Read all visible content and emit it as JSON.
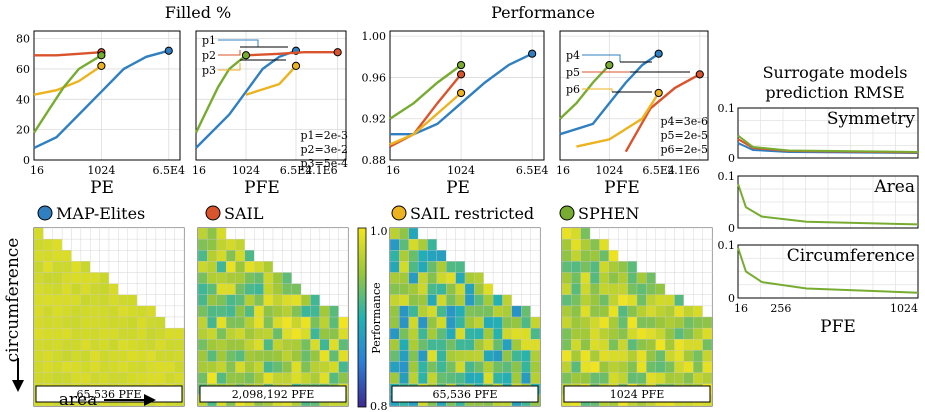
{
  "titles": {
    "filled": "Filled %",
    "performance": "Performance",
    "rmse_line1": "Surrogate models",
    "rmse_line2": "prediction RMSE"
  },
  "legend": [
    {
      "name": "MAP-Elites",
      "color": "#2f7fc1"
    },
    {
      "name": "SAIL",
      "color": "#d9542c"
    },
    {
      "name": "SAIL restricted",
      "color": "#edb31f"
    },
    {
      "name": "SPHEN",
      "color": "#77ac30"
    }
  ],
  "axes_labels": {
    "pe": "PE",
    "pfe": "PFE",
    "circumference": "circumference",
    "area": "area",
    "colorbar": "Performance"
  },
  "chart_data": [
    {
      "type": "line",
      "name": "filled-pe",
      "xscale": "log",
      "xticks": [
        "16",
        "1024",
        "6.5E4"
      ],
      "yticks": [
        "0",
        "20",
        "40",
        "60",
        "80"
      ],
      "ylim": [
        0,
        85
      ],
      "series": [
        {
          "name": "MAP-Elites",
          "color": "#2f7fc1",
          "points": [
            [
              16,
              8
            ],
            [
              64,
              15
            ],
            [
              256,
              30
            ],
            [
              1024,
              45
            ],
            [
              4096,
              60
            ],
            [
              16384,
              68
            ],
            [
              65536,
              72
            ]
          ],
          "end": [
            65536,
            72
          ]
        },
        {
          "name": "SAIL",
          "color": "#d9542c",
          "points": [
            [
              16,
              69
            ],
            [
              64,
              69
            ],
            [
              256,
              70
            ],
            [
              1024,
              71
            ]
          ],
          "end": [
            1024,
            71
          ]
        },
        {
          "name": "SAIL restricted",
          "color": "#edb31f",
          "points": [
            [
              16,
              43
            ],
            [
              64,
              46
            ],
            [
              256,
              52
            ],
            [
              1024,
              62
            ]
          ],
          "end": [
            1024,
            62
          ]
        },
        {
          "name": "SPHEN",
          "color": "#77ac30",
          "points": [
            [
              16,
              18
            ],
            [
              40,
              33
            ],
            [
              100,
              48
            ],
            [
              256,
              60
            ],
            [
              1024,
              69
            ]
          ],
          "end": [
            1024,
            69
          ]
        }
      ]
    },
    {
      "type": "line",
      "name": "filled-pfe",
      "xscale": "log",
      "xticks": [
        "16",
        "1024",
        "6.5E4",
        "2.1E6"
      ],
      "ylim": [
        0,
        85
      ],
      "annotations": [
        "p1",
        "p2",
        "p3",
        "p1=2e-3",
        "p2=3e-2",
        "p3=5e-4"
      ],
      "series": [
        {
          "name": "MAP-Elites",
          "color": "#2f7fc1",
          "points": [
            [
              16,
              8
            ],
            [
              256,
              30
            ],
            [
              1024,
              45
            ],
            [
              4096,
              60
            ],
            [
              16384,
              68
            ],
            [
              65536,
              72
            ]
          ],
          "end": [
            65536,
            72
          ]
        },
        {
          "name": "SAIL",
          "color": "#d9542c",
          "points": [
            [
              1024,
              69
            ],
            [
              16384,
              70
            ],
            [
              131072,
              71
            ],
            [
              2097152,
              71
            ]
          ],
          "end": [
            2097152,
            71
          ]
        },
        {
          "name": "SAIL restricted",
          "color": "#edb31f",
          "points": [
            [
              1024,
              43
            ],
            [
              16384,
              50
            ],
            [
              65536,
              62
            ]
          ],
          "end": [
            65536,
            62
          ]
        },
        {
          "name": "SPHEN",
          "color": "#77ac30",
          "points": [
            [
              16,
              18
            ],
            [
              40,
              33
            ],
            [
              100,
              48
            ],
            [
              256,
              60
            ],
            [
              1024,
              69
            ]
          ],
          "end": [
            1024,
            69
          ]
        }
      ]
    },
    {
      "type": "line",
      "name": "perf-pe",
      "xscale": "log",
      "xticks": [
        "16",
        "1024",
        "6.5E4"
      ],
      "yticks": [
        "0.88",
        "0.92",
        "0.96",
        "1.00"
      ],
      "ylim": [
        0.88,
        1.005
      ],
      "series": [
        {
          "name": "MAP-Elites",
          "color": "#2f7fc1",
          "points": [
            [
              16,
              0.905
            ],
            [
              64,
              0.905
            ],
            [
              256,
              0.915
            ],
            [
              1024,
              0.935
            ],
            [
              4096,
              0.955
            ],
            [
              16384,
              0.972
            ],
            [
              65536,
              0.983
            ]
          ],
          "end": [
            65536,
            0.983
          ]
        },
        {
          "name": "SAIL",
          "color": "#d9542c",
          "points": [
            [
              16,
              0.893
            ],
            [
              64,
              0.905
            ],
            [
              256,
              0.935
            ],
            [
              1024,
              0.963
            ]
          ],
          "end": [
            1024,
            0.963
          ]
        },
        {
          "name": "SAIL restricted",
          "color": "#edb31f",
          "points": [
            [
              16,
              0.895
            ],
            [
              64,
              0.905
            ],
            [
              256,
              0.925
            ],
            [
              1024,
              0.945
            ]
          ],
          "end": [
            1024,
            0.945
          ]
        },
        {
          "name": "SPHEN",
          "color": "#77ac30",
          "points": [
            [
              16,
              0.92
            ],
            [
              64,
              0.935
            ],
            [
              256,
              0.955
            ],
            [
              1024,
              0.972
            ]
          ],
          "end": [
            1024,
            0.972
          ]
        }
      ]
    },
    {
      "type": "line",
      "name": "perf-pfe",
      "xscale": "log",
      "xticks": [
        "16",
        "1024",
        "6.5E4",
        "2.1E6"
      ],
      "ylim": [
        0.88,
        1.005
      ],
      "annotations": [
        "p4",
        "p5",
        "p6",
        "p4=3e-6",
        "p5=2e-5",
        "p6=2e-5"
      ],
      "series": [
        {
          "name": "MAP-Elites",
          "color": "#2f7fc1",
          "points": [
            [
              16,
              0.905
            ],
            [
              256,
              0.915
            ],
            [
              1024,
              0.935
            ],
            [
              4096,
              0.955
            ],
            [
              16384,
              0.972
            ],
            [
              65536,
              0.983
            ]
          ],
          "end": [
            65536,
            0.983
          ]
        },
        {
          "name": "SAIL",
          "color": "#d9542c",
          "points": [
            [
              4096,
              0.888
            ],
            [
              32768,
              0.93
            ],
            [
              262144,
              0.95
            ],
            [
              2097152,
              0.963
            ]
          ],
          "end": [
            2097152,
            0.963
          ]
        },
        {
          "name": "SAIL restricted",
          "color": "#edb31f",
          "points": [
            [
              64,
              0.893
            ],
            [
              1024,
              0.9
            ],
            [
              16384,
              0.92
            ],
            [
              65536,
              0.945
            ]
          ],
          "end": [
            65536,
            0.945
          ]
        },
        {
          "name": "SPHEN",
          "color": "#77ac30",
          "points": [
            [
              16,
              0.92
            ],
            [
              64,
              0.935
            ],
            [
              256,
              0.955
            ],
            [
              1024,
              0.972
            ]
          ],
          "end": [
            1024,
            0.972
          ]
        }
      ]
    },
    {
      "type": "line",
      "name": "rmse",
      "xscale": "linear",
      "xlim": [
        16,
        1024
      ],
      "xticks": [
        "16",
        "256",
        "1024"
      ],
      "yticks": [
        "0",
        "0.1"
      ],
      "ylim": [
        0,
        0.1
      ],
      "panels": [
        {
          "label": "Symmetry",
          "series": [
            {
              "name": "MAP-Elites",
              "color": "#2f7fc1",
              "points": [
                [
                  16,
                  0.03
                ],
                [
                  100,
                  0.016
                ],
                [
                  300,
                  0.012
                ],
                [
                  1024,
                  0.01
                ]
              ]
            },
            {
              "name": "SAIL",
              "color": "#d9542c",
              "points": [
                [
                  16,
                  0.038
                ],
                [
                  100,
                  0.02
                ],
                [
                  300,
                  0.014
                ],
                [
                  1024,
                  0.011
                ]
              ]
            },
            {
              "name": "SPHEN",
              "color": "#77ac30",
              "points": [
                [
                  16,
                  0.045
                ],
                [
                  100,
                  0.022
                ],
                [
                  300,
                  0.015
                ],
                [
                  1024,
                  0.012
                ]
              ]
            }
          ]
        },
        {
          "label": "Area",
          "series": [
            {
              "name": "SPHEN",
              "color": "#77ac30",
              "points": [
                [
                  16,
                  0.085
                ],
                [
                  60,
                  0.04
                ],
                [
                  150,
                  0.022
                ],
                [
                  400,
                  0.012
                ],
                [
                  1024,
                  0.007
                ]
              ]
            }
          ]
        },
        {
          "label": "Circumference",
          "series": [
            {
              "name": "SPHEN",
              "color": "#77ac30",
              "points": [
                [
                  16,
                  0.095
                ],
                [
                  60,
                  0.05
                ],
                [
                  150,
                  0.03
                ],
                [
                  400,
                  0.018
                ],
                [
                  1024,
                  0.01
                ]
              ]
            }
          ]
        }
      ]
    },
    {
      "type": "heatmap",
      "name": "archives",
      "colorbar_range": [
        0.8,
        1.0
      ],
      "colorbar_ticks": [
        "1.0",
        "0.8"
      ],
      "maps": [
        {
          "method": "MAP-Elites",
          "caption": "65,536 PFE"
        },
        {
          "method": "SAIL",
          "caption": "2,098,192 PFE"
        },
        {
          "method": "SAIL restricted",
          "caption": "65,536 PFE"
        },
        {
          "method": "SPHEN",
          "caption": "1024 PFE"
        }
      ]
    }
  ]
}
